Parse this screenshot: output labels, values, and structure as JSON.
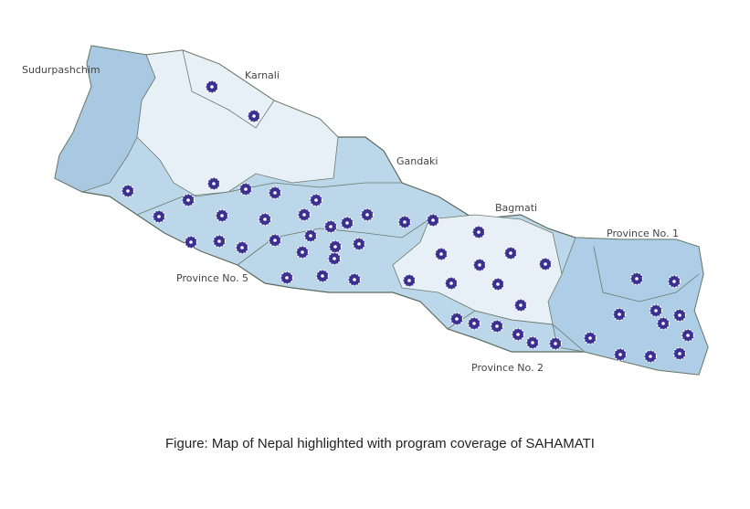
{
  "map": {
    "regions": [
      {
        "label": "Sudurpashchim"
      },
      {
        "label": "Karnali"
      },
      {
        "label": "Gandaki"
      },
      {
        "label": "Bagmati"
      },
      {
        "label": "Province No. 1"
      },
      {
        "label": "Province No. 5"
      },
      {
        "label": "Province No. 2"
      }
    ]
  },
  "caption": "Figure: Map of Nepal highlighted with program coverage of SAHAMATI"
}
